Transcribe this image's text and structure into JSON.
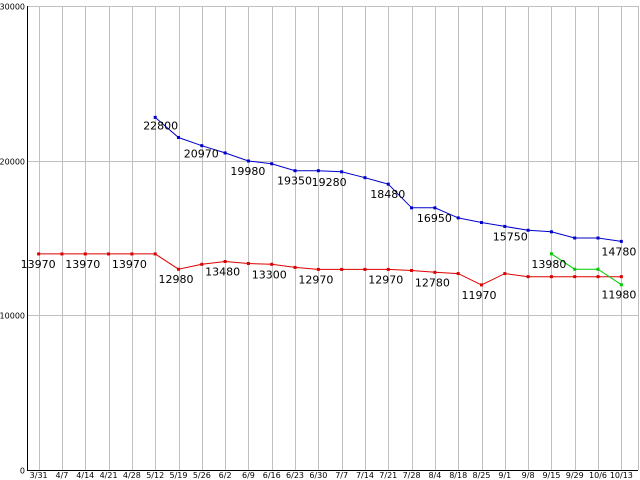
{
  "chart_data": {
    "type": "line",
    "title": "",
    "xlabel": "",
    "ylabel": "",
    "ylim": [
      0,
      30000
    ],
    "yticks": [
      "0",
      "10000",
      "20000",
      "30000"
    ],
    "grid": true,
    "categories": [
      "3/31",
      "4/7",
      "4/14",
      "4/21",
      "4/28",
      "5/12",
      "5/19",
      "5/26",
      "6/2",
      "6/9",
      "6/16",
      "6/23",
      "6/30",
      "7/7",
      "7/14",
      "7/21",
      "7/28",
      "8/4",
      "8/18",
      "8/25",
      "9/1",
      "9/8",
      "9/15",
      "9/29",
      "10/6",
      "10/13"
    ],
    "series": [
      {
        "color": "#0000cc",
        "values": [
          null,
          null,
          null,
          null,
          null,
          22800,
          21500,
          20970,
          20500,
          19980,
          19800,
          19350,
          19350,
          19280,
          18900,
          18480,
          16950,
          16950,
          16300,
          16000,
          15750,
          15500,
          15400,
          15000,
          15000,
          14780
        ]
      },
      {
        "color": "#dd0000",
        "values": [
          13970,
          13970,
          13970,
          13970,
          13970,
          13970,
          12980,
          13300,
          13480,
          13350,
          13300,
          13100,
          12970,
          12970,
          12970,
          12970,
          12900,
          12780,
          12700,
          11970,
          12700,
          12500,
          12500,
          12500,
          12500,
          12500
        ]
      },
      {
        "color": "#00cc00",
        "values": [
          null,
          null,
          null,
          null,
          null,
          null,
          null,
          null,
          null,
          null,
          null,
          null,
          null,
          null,
          null,
          null,
          null,
          null,
          null,
          null,
          null,
          null,
          13980,
          12980,
          12980,
          11980
        ]
      }
    ],
    "annotations": [
      {
        "text": "22800",
        "cat": 5,
        "value": 22800,
        "dx": -12,
        "dy": 12
      },
      {
        "text": "20970",
        "cat": 7,
        "value": 20970,
        "dx": -18,
        "dy": 12
      },
      {
        "text": "19980",
        "cat": 9,
        "value": 19980,
        "dx": -18,
        "dy": 14
      },
      {
        "text": "19350",
        "cat": 11,
        "value": 19350,
        "dx": -18,
        "dy": 14
      },
      {
        "text": "19280",
        "cat": 13,
        "value": 19280,
        "dx": -30,
        "dy": 14
      },
      {
        "text": "18480",
        "cat": 15,
        "value": 18480,
        "dx": -18,
        "dy": 14
      },
      {
        "text": "16950",
        "cat": 17,
        "value": 16950,
        "dx": -18,
        "dy": 14
      },
      {
        "text": "15750",
        "cat": 20,
        "value": 15750,
        "dx": -12,
        "dy": 14
      },
      {
        "text": "14780",
        "cat": 25,
        "value": 14780,
        "dx": -20,
        "dy": 14
      },
      {
        "text": "13970",
        "cat": 0,
        "value": 13970,
        "dx": -18,
        "dy": 14
      },
      {
        "text": "13970",
        "cat": 2,
        "value": 13970,
        "dx": -20,
        "dy": 14
      },
      {
        "text": "13970",
        "cat": 4,
        "value": 13970,
        "dx": -20,
        "dy": 14
      },
      {
        "text": "12980",
        "cat": 6,
        "value": 12980,
        "dx": -20,
        "dy": 14
      },
      {
        "text": "13480",
        "cat": 8,
        "value": 13480,
        "dx": -20,
        "dy": 14
      },
      {
        "text": "13300",
        "cat": 10,
        "value": 13300,
        "dx": -20,
        "dy": 14
      },
      {
        "text": "12970",
        "cat": 12,
        "value": 12970,
        "dx": -20,
        "dy": 14
      },
      {
        "text": "12970",
        "cat": 15,
        "value": 12970,
        "dx": -20,
        "dy": 14
      },
      {
        "text": "12780",
        "cat": 17,
        "value": 12780,
        "dx": -20,
        "dy": 14
      },
      {
        "text": "11970",
        "cat": 19,
        "value": 11970,
        "dx": -20,
        "dy": 14
      },
      {
        "text": "13980",
        "cat": 22,
        "value": 13980,
        "dx": -20,
        "dy": 14
      },
      {
        "text": "11980",
        "cat": 25,
        "value": 11980,
        "dx": -20,
        "dy": 14
      }
    ]
  }
}
